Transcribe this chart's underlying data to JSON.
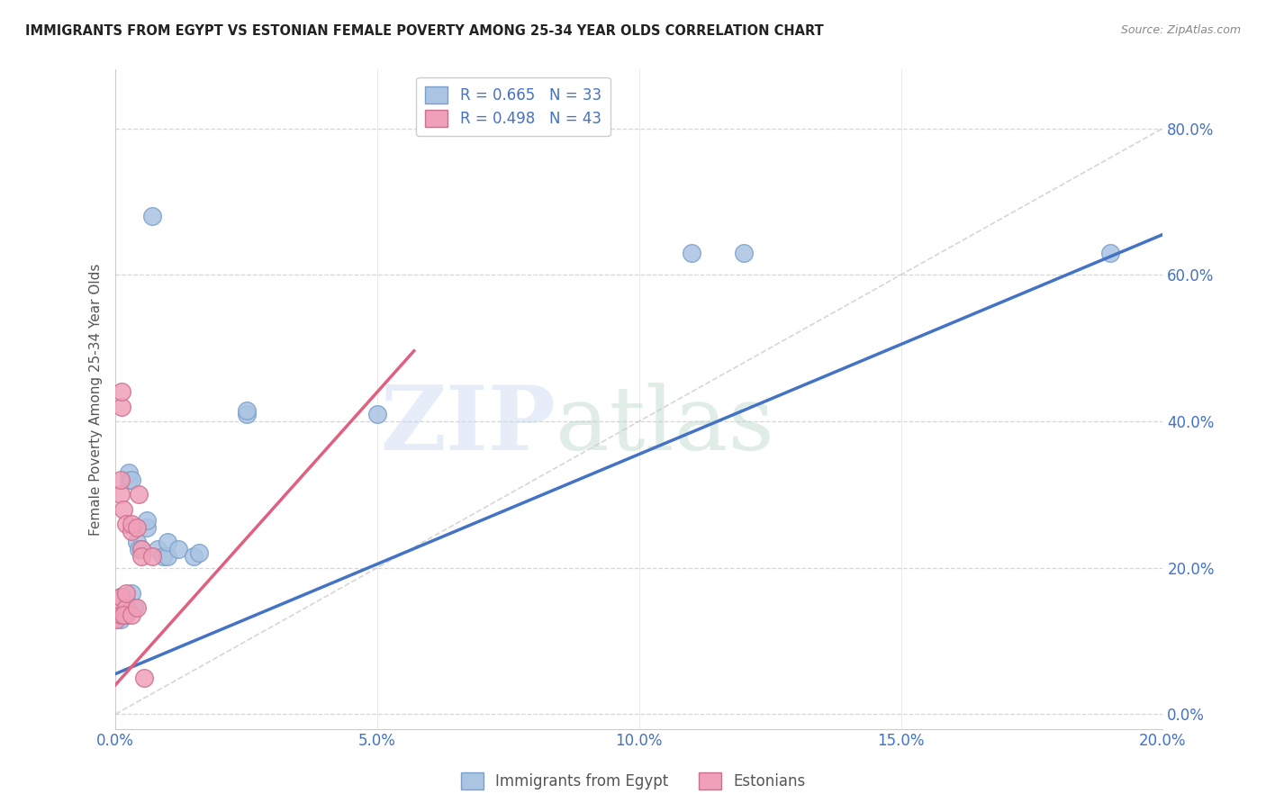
{
  "title": "IMMIGRANTS FROM EGYPT VS ESTONIAN FEMALE POVERTY AMONG 25-34 YEAR OLDS CORRELATION CHART",
  "source": "Source: ZipAtlas.com",
  "ylabel_label": "Female Poverty Among 25-34 Year Olds",
  "xlim": [
    0.0,
    0.2
  ],
  "ylim": [
    -0.02,
    0.88
  ],
  "title_color": "#222222",
  "grid_color": "#cccccc",
  "diagonal_line_color": "#cccccc",
  "blue_line_color": "#4472c4",
  "blue_line_intercept": 0.055,
  "blue_line_slope": 3.0,
  "pink_line_color": "#e06080",
  "pink_line_intercept": 0.04,
  "pink_line_slope": 8.0,
  "pink_line_xmax": 0.057,
  "egypt_points": [
    [
      0.0002,
      0.135
    ],
    [
      0.0003,
      0.145
    ],
    [
      0.0005,
      0.148
    ],
    [
      0.0006,
      0.15
    ],
    [
      0.001,
      0.14
    ],
    [
      0.001,
      0.13
    ],
    [
      0.001,
      0.155
    ],
    [
      0.001,
      0.16
    ],
    [
      0.0015,
      0.145
    ],
    [
      0.0015,
      0.16
    ],
    [
      0.002,
      0.155
    ],
    [
      0.002,
      0.14
    ],
    [
      0.0025,
      0.32
    ],
    [
      0.0025,
      0.33
    ],
    [
      0.003,
      0.32
    ],
    [
      0.003,
      0.165
    ],
    [
      0.0035,
      0.145
    ],
    [
      0.004,
      0.235
    ],
    [
      0.0045,
      0.225
    ],
    [
      0.005,
      0.225
    ],
    [
      0.006,
      0.255
    ],
    [
      0.006,
      0.265
    ],
    [
      0.007,
      0.68
    ],
    [
      0.008,
      0.225
    ],
    [
      0.009,
      0.215
    ],
    [
      0.01,
      0.215
    ],
    [
      0.01,
      0.235
    ],
    [
      0.012,
      0.225
    ],
    [
      0.015,
      0.215
    ],
    [
      0.016,
      0.22
    ],
    [
      0.025,
      0.41
    ],
    [
      0.025,
      0.415
    ],
    [
      0.05,
      0.41
    ],
    [
      0.11,
      0.63
    ],
    [
      0.12,
      0.63
    ],
    [
      0.19,
      0.63
    ]
  ],
  "estonian_points": [
    [
      0.0002,
      0.13
    ],
    [
      0.0003,
      0.14
    ],
    [
      0.0004,
      0.14
    ],
    [
      0.0005,
      0.15
    ],
    [
      0.0006,
      0.14
    ],
    [
      0.0007,
      0.145
    ],
    [
      0.001,
      0.135
    ],
    [
      0.001,
      0.145
    ],
    [
      0.001,
      0.155
    ],
    [
      0.001,
      0.16
    ],
    [
      0.001,
      0.3
    ],
    [
      0.001,
      0.32
    ],
    [
      0.0012,
      0.42
    ],
    [
      0.0012,
      0.44
    ],
    [
      0.0015,
      0.28
    ],
    [
      0.002,
      0.26
    ],
    [
      0.002,
      0.135
    ],
    [
      0.002,
      0.145
    ],
    [
      0.003,
      0.25
    ],
    [
      0.003,
      0.26
    ],
    [
      0.004,
      0.255
    ],
    [
      0.0045,
      0.3
    ],
    [
      0.005,
      0.225
    ],
    [
      0.0015,
      0.135
    ],
    [
      0.002,
      0.165
    ],
    [
      0.003,
      0.135
    ],
    [
      0.004,
      0.145
    ],
    [
      0.005,
      0.215
    ],
    [
      0.0055,
      0.05
    ],
    [
      0.007,
      0.215
    ]
  ]
}
